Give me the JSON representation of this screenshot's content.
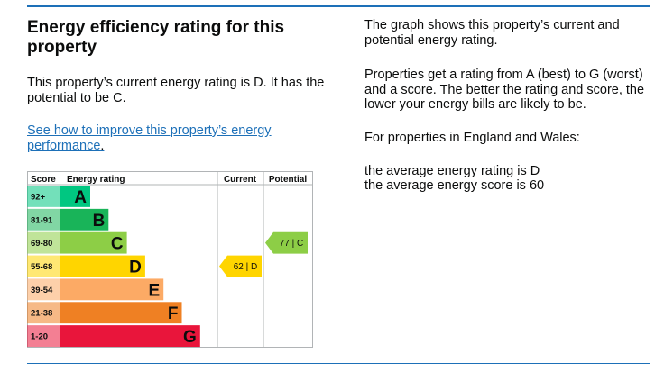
{
  "heading": "Energy efficiency rating for this property",
  "intro": "This property’s current energy rating is D. It has the potential to be C.",
  "link_text": "See how to improve this property’s energy performance",
  "link_suffix": ".",
  "side": {
    "p1": "The graph shows this property’s current and potential energy rating.",
    "p2": "Properties get a rating from A (best) to G (worst) and a score. The better the rating and score, the lower your energy bills are likely to be.",
    "p3": "For properties in England and Wales:",
    "p4": "the average energy rating is D",
    "p5": "the average energy score is 60"
  },
  "chart": {
    "headers": {
      "score": "Score",
      "rating": "Energy rating",
      "current": "Current",
      "potential": "Potential"
    },
    "bands": [
      {
        "letter": "A",
        "range": "92+",
        "color": "#00c781"
      },
      {
        "letter": "B",
        "range": "81-91",
        "color": "#19b459"
      },
      {
        "letter": "C",
        "range": "69-80",
        "color": "#8dce46"
      },
      {
        "letter": "D",
        "range": "55-68",
        "color": "#ffd500"
      },
      {
        "letter": "E",
        "range": "39-54",
        "color": "#fcaa65"
      },
      {
        "letter": "F",
        "range": "21-38",
        "color": "#ef8023"
      },
      {
        "letter": "G",
        "range": "1-20",
        "color": "#e9153b"
      }
    ],
    "current": {
      "score": 62,
      "letter": "D",
      "label": "62 | D",
      "color": "#ffd500"
    },
    "potential": {
      "score": 77,
      "letter": "C",
      "label": "77 | C",
      "color": "#8dce46"
    }
  }
}
